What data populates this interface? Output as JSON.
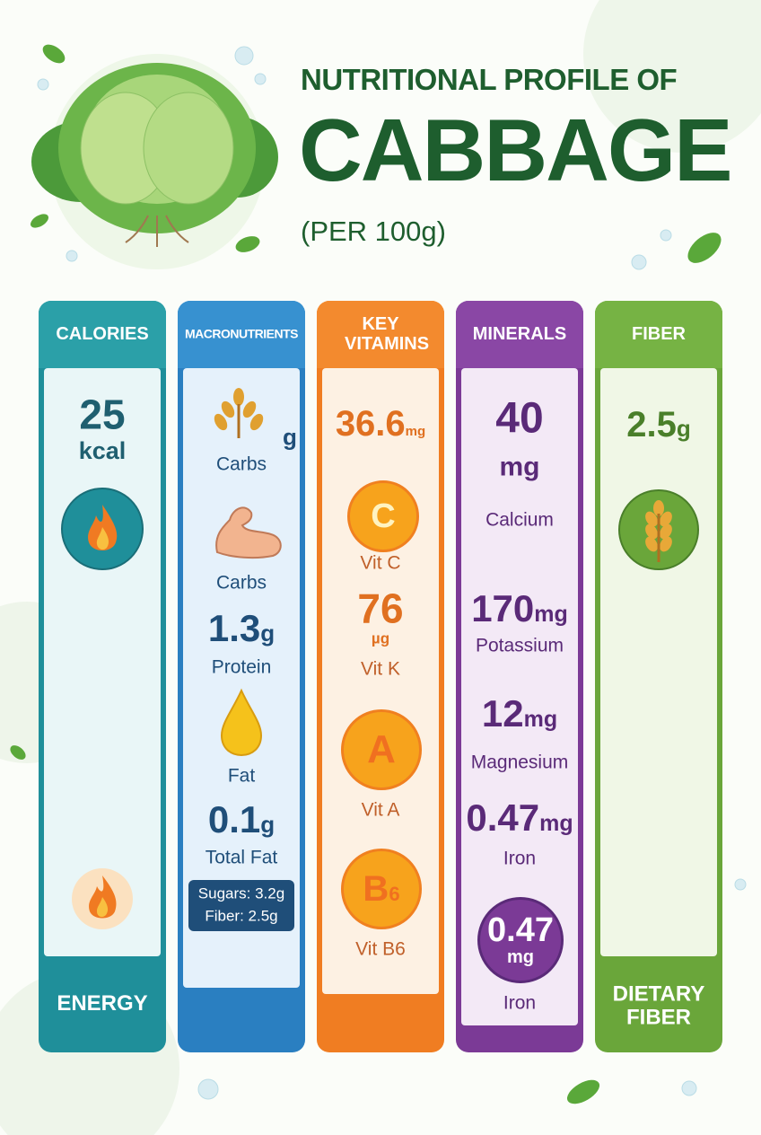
{
  "header": {
    "line1": "NUTRITIONAL PROFILE OF",
    "title": "CABBAGE",
    "subtitle": "(PER 100g)"
  },
  "columns": [
    {
      "heading": "CALORIES",
      "value": "25",
      "unit": "kcal",
      "footer": "ENERGY"
    },
    {
      "heading": "MACRONUTRIENTS",
      "items": [
        {
          "unit": "g",
          "label": "Carbs"
        },
        {
          "label": "Carbs"
        },
        {
          "value": "1.3",
          "unit": "g",
          "label": "Protein"
        },
        {
          "label": "Fat"
        },
        {
          "value": "0.1",
          "unit": "g",
          "label": "Total Fat"
        }
      ],
      "note": [
        "Sugars: 3.2g",
        "Fiber: 2.5g"
      ]
    },
    {
      "heading": "KEY VITAMINS",
      "items": [
        {
          "value": "36.6",
          "unit": "mg"
        },
        {
          "badge": "C",
          "label": "Vit C"
        },
        {
          "value": "76",
          "unit": "µg",
          "label": "Vit K"
        },
        {
          "badge": "A",
          "label": "Vit A"
        },
        {
          "badge": "B",
          "badge_sub": "6",
          "label": "Vit B6"
        }
      ]
    },
    {
      "heading": "MINERALS",
      "items": [
        {
          "value": "40",
          "unit": "mg",
          "label": "Calcium"
        },
        {
          "value": "170",
          "unit": "mg",
          "label": "Potassium"
        },
        {
          "value": "12",
          "unit": "mg",
          "label": "Magnesium"
        },
        {
          "value": "0.47",
          "unit": "mg",
          "label": "Iron"
        },
        {
          "badge": "0.47",
          "badge_unit": "mg",
          "label": "Iron"
        }
      ]
    },
    {
      "heading": "FIBER",
      "value": "2.5",
      "unit": "g",
      "footer": "DIETARY FIBER"
    }
  ]
}
